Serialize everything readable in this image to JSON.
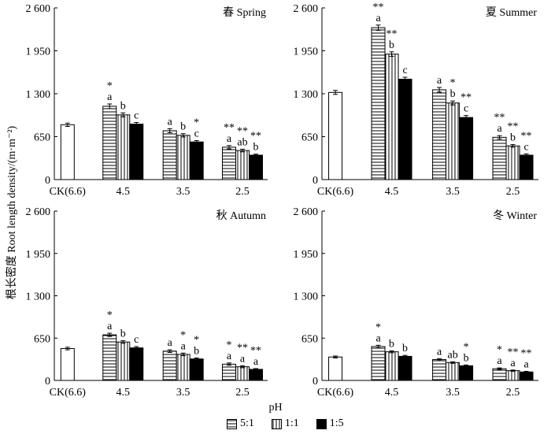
{
  "shared": {
    "ylabel": "根长密度 Root length density/(m·m⁻²)",
    "xlabel": "pH",
    "categories": [
      "CK(6.6)",
      "4.5",
      "3.5",
      "2.5"
    ],
    "yticks": [
      "0",
      "650",
      "1 300",
      "1 950",
      "2 600"
    ],
    "ylim": [
      0,
      2600
    ],
    "legend": [
      "5:1",
      "1:1",
      "1:5"
    ]
  },
  "chart_data": [
    {
      "type": "bar",
      "title": "春 Spring",
      "ck": {
        "value": 830,
        "err": 25
      },
      "series": [
        {
          "name": "5:1",
          "values": [
            1110,
            740,
            490
          ],
          "err": [
            35,
            30,
            25
          ],
          "labels": [
            "a",
            "a",
            "a"
          ],
          "stars": [
            "*",
            "",
            "**"
          ]
        },
        {
          "name": "1:1",
          "values": [
            980,
            670,
            440
          ],
          "err": [
            30,
            25,
            20
          ],
          "labels": [
            "b",
            "b",
            "ab"
          ],
          "stars": [
            "",
            "",
            "**"
          ]
        },
        {
          "name": "1:5",
          "values": [
            840,
            570,
            370
          ],
          "err": [
            25,
            20,
            15
          ],
          "labels": [
            "c",
            "c",
            "b"
          ],
          "stars": [
            "",
            "*",
            "**"
          ]
        }
      ]
    },
    {
      "type": "bar",
      "title": "夏 Summer",
      "ck": {
        "value": 1320,
        "err": 30
      },
      "series": [
        {
          "name": "5:1",
          "values": [
            2300,
            1360,
            640
          ],
          "err": [
            40,
            35,
            25
          ],
          "labels": [
            "a",
            "a",
            "a"
          ],
          "stars": [
            "**",
            "",
            "**"
          ]
        },
        {
          "name": "1:1",
          "values": [
            1900,
            1160,
            510
          ],
          "err": [
            35,
            30,
            20
          ],
          "labels": [
            "b",
            "b",
            "b"
          ],
          "stars": [
            "**",
            "*",
            "**"
          ]
        },
        {
          "name": "1:5",
          "values": [
            1520,
            940,
            370
          ],
          "err": [
            30,
            30,
            20
          ],
          "labels": [
            "c",
            "c",
            "c"
          ],
          "stars": [
            "",
            "**",
            "**"
          ]
        }
      ]
    },
    {
      "type": "bar",
      "title": "秋 Autumn",
      "ck": {
        "value": 490,
        "err": 20
      },
      "series": [
        {
          "name": "5:1",
          "values": [
            700,
            450,
            250
          ],
          "err": [
            25,
            20,
            18
          ],
          "labels": [
            "a",
            "a",
            "a"
          ],
          "stars": [
            "*",
            "",
            "*"
          ]
        },
        {
          "name": "1:1",
          "values": [
            590,
            400,
            210
          ],
          "err": [
            20,
            20,
            15
          ],
          "labels": [
            "b",
            "a",
            "a"
          ],
          "stars": [
            "",
            "*",
            "**"
          ]
        },
        {
          "name": "1:5",
          "values": [
            500,
            330,
            170
          ],
          "err": [
            20,
            15,
            12
          ],
          "labels": [
            "c",
            "b",
            "a"
          ],
          "stars": [
            "",
            "*",
            "**"
          ]
        }
      ]
    },
    {
      "type": "bar",
      "title": "冬 Winter",
      "ck": {
        "value": 360,
        "err": 15
      },
      "series": [
        {
          "name": "5:1",
          "values": [
            520,
            320,
            180
          ],
          "err": [
            20,
            15,
            12
          ],
          "labels": [
            "a",
            "a",
            "a"
          ],
          "stars": [
            "*",
            "",
            "*"
          ]
        },
        {
          "name": "1:1",
          "values": [
            440,
            275,
            150
          ],
          "err": [
            15,
            12,
            10
          ],
          "labels": [
            "b",
            "ab",
            "a"
          ],
          "stars": [
            "",
            "",
            "**"
          ]
        },
        {
          "name": "1:5",
          "values": [
            370,
            225,
            130
          ],
          "err": [
            15,
            12,
            10
          ],
          "labels": [
            "b",
            "b",
            "a"
          ],
          "stars": [
            "",
            "*",
            "**"
          ]
        }
      ]
    }
  ]
}
